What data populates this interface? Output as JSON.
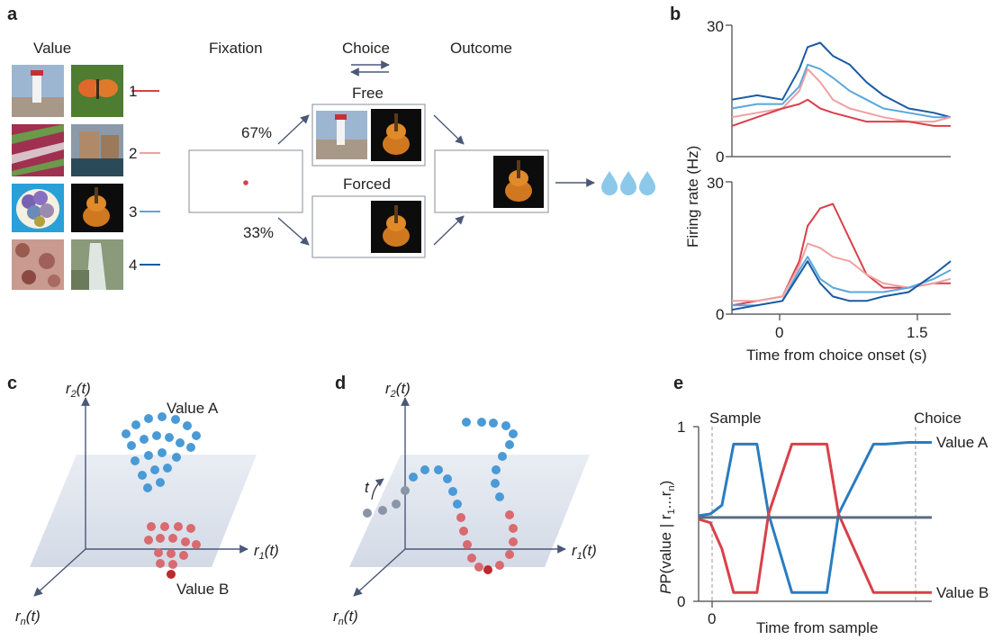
{
  "panel_a": {
    "label": "a",
    "value_header": "Value",
    "fixation_header": "Fixation",
    "choice_header": "Choice",
    "outcome_header": "Outcome",
    "free_label": "Free",
    "forced_label": "Forced",
    "pct_free": "67%",
    "pct_forced": "33%",
    "value_rows": [
      {
        "num": "1",
        "color": "#d9404a",
        "images": [
          "lighthouse-photo",
          "butterfly-photo"
        ]
      },
      {
        "num": "2",
        "color": "#f0a0a2",
        "images": [
          "striped-photo",
          "canal-photo"
        ]
      },
      {
        "num": "3",
        "color": "#5aa7dc",
        "images": [
          "balloons-photo",
          "guitar-photo"
        ]
      },
      {
        "num": "4",
        "color": "#1a5aa0",
        "images": [
          "fabric-photo",
          "waterfall-photo"
        ]
      }
    ],
    "reward_icon": "water-drops-icon"
  },
  "panel_b": {
    "label": "b",
    "ylabel": "Firing rate (Hz)",
    "xlabel": "Time from choice onset (s)",
    "ytick_top": "30",
    "ytick_bottom": "0",
    "xticks": [
      "0",
      "1.5"
    ]
  },
  "chart_data": [
    {
      "type": "line",
      "subplot": "top",
      "ylim": [
        0,
        30
      ],
      "x": [
        -0.6,
        -0.3,
        0.0,
        0.2,
        0.3,
        0.45,
        0.6,
        0.8,
        1.0,
        1.2,
        1.5,
        1.8,
        2.0
      ],
      "series": [
        {
          "color": "#1a5aa0",
          "values": [
            13,
            14,
            13,
            20,
            25,
            26,
            23,
            21,
            17,
            14,
            11,
            10,
            9
          ]
        },
        {
          "color": "#5aa7dc",
          "values": [
            11,
            12,
            12,
            16,
            21,
            20,
            18,
            15,
            13,
            11,
            10,
            9,
            9
          ]
        },
        {
          "color": "#f0a0a2",
          "values": [
            9,
            10,
            11,
            15,
            20,
            17,
            13,
            11,
            10,
            9,
            8,
            8,
            9
          ]
        },
        {
          "color": "#d9404a",
          "values": [
            7,
            9,
            11,
            12,
            13,
            11,
            10,
            9,
            8,
            8,
            8,
            7,
            7
          ]
        }
      ]
    },
    {
      "type": "line",
      "subplot": "bottom",
      "ylim": [
        0,
        30
      ],
      "x": [
        -0.6,
        -0.3,
        0.0,
        0.2,
        0.3,
        0.45,
        0.6,
        0.8,
        1.0,
        1.2,
        1.5,
        1.8,
        2.0
      ],
      "series": [
        {
          "color": "#d9404a",
          "values": [
            2,
            3,
            4,
            12,
            20,
            24,
            25,
            17,
            9,
            6,
            6,
            7,
            7
          ]
        },
        {
          "color": "#f0a0a2",
          "values": [
            3,
            3,
            4,
            11,
            16,
            15,
            13,
            12,
            9,
            7,
            6,
            7,
            8
          ]
        },
        {
          "color": "#5aa7dc",
          "values": [
            2,
            2,
            3,
            10,
            13,
            8,
            6,
            5,
            5,
            5,
            6,
            8,
            10
          ]
        },
        {
          "color": "#1a5aa0",
          "values": [
            1,
            2,
            3,
            9,
            12,
            7,
            4,
            3,
            3,
            4,
            5,
            9,
            12
          ]
        }
      ]
    },
    {
      "type": "line",
      "subplot": "e",
      "ylim": [
        0,
        1
      ],
      "x": [
        0,
        0.05,
        0.1,
        0.15,
        0.25,
        0.3,
        0.4,
        0.45,
        0.55,
        0.6,
        0.75,
        0.8,
        0.9,
        1.0
      ],
      "series": [
        {
          "name": "Value A",
          "color": "#2a7cc0",
          "values": [
            0.49,
            0.5,
            0.55,
            0.9,
            0.9,
            0.5,
            0.05,
            0.05,
            0.05,
            0.5,
            0.9,
            0.9,
            0.91,
            0.91
          ]
        },
        {
          "name": "Value B",
          "color": "#d9404a",
          "values": [
            0.47,
            0.45,
            0.3,
            0.05,
            0.05,
            0.5,
            0.9,
            0.9,
            0.9,
            0.5,
            0.05,
            0.05,
            0.05,
            0.05
          ]
        },
        {
          "color": "#5a6d85",
          "values": [
            0.48,
            0.48,
            0.48,
            0.48,
            0.48,
            0.48,
            0.48,
            0.48,
            0.48,
            0.48,
            0.48,
            0.48,
            0.48,
            0.48
          ]
        }
      ]
    }
  ],
  "panel_c": {
    "label": "c",
    "axis_r2": "r",
    "axis_r2_sub": "2",
    "axis_r1": "r",
    "axis_r1_sub": "1",
    "axis_rn": "r",
    "axis_rn_sub": "n",
    "t_suffix": "(t)",
    "value_a": "Value A",
    "value_b": "Value B"
  },
  "panel_d": {
    "label": "d",
    "t_arrow": "t"
  },
  "panel_e": {
    "label": "e",
    "ylabel": "P(value | r",
    "ylabel_tail": "...r",
    "ylabel_end": ")",
    "xlabel": "Time from sample",
    "sample_label": "Sample",
    "choice_label": "Choice",
    "ytick_top": "1",
    "ytick_bottom": "0",
    "xtick_zero": "0",
    "value_a": "Value A",
    "value_b": "Value B"
  },
  "colors": {
    "arrow": "#4a5878",
    "dot_blue": "#4a9ad6",
    "dot_red": "#d86a70",
    "dot_red_dark": "#c0282e",
    "dot_grey": "#8a95a8",
    "plane": "#dde3ee"
  }
}
